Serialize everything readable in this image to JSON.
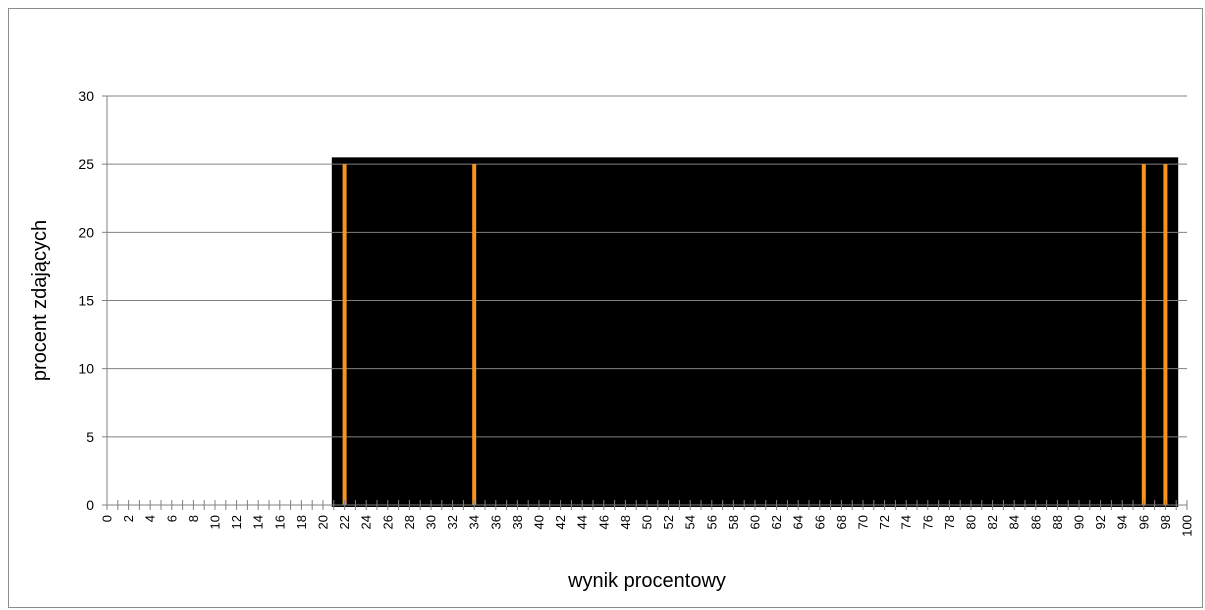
{
  "chart_data": {
    "type": "bar",
    "title": "",
    "xlabel": "wynik procentowy",
    "ylabel": "procent zdających",
    "ylim": [
      0,
      30
    ],
    "y_ticks": [
      0,
      5,
      10,
      15,
      20,
      25,
      30
    ],
    "x_range": [
      0,
      100
    ],
    "x_tick_labels": [
      "0",
      "2",
      "4",
      "6",
      "8",
      "10",
      "12",
      "14",
      "16",
      "18",
      "20",
      "22",
      "24",
      "26",
      "28",
      "30",
      "32",
      "34",
      "36",
      "38",
      "40",
      "42",
      "44",
      "46",
      "48",
      "50",
      "52",
      "54",
      "56",
      "58",
      "60",
      "62",
      "64",
      "66",
      "68",
      "70",
      "72",
      "74",
      "76",
      "78",
      "80",
      "82",
      "84",
      "86",
      "88",
      "90",
      "92",
      "94",
      "96",
      "98",
      "100"
    ],
    "x": [
      22,
      34,
      96,
      98
    ],
    "values": [
      25,
      25,
      25,
      25
    ],
    "highlight_range": [
      21,
      99
    ],
    "grid": true,
    "colors": {
      "bar": "#f7941d",
      "highlight": "#000000",
      "grid": "#808080",
      "axis": "#808080"
    }
  }
}
